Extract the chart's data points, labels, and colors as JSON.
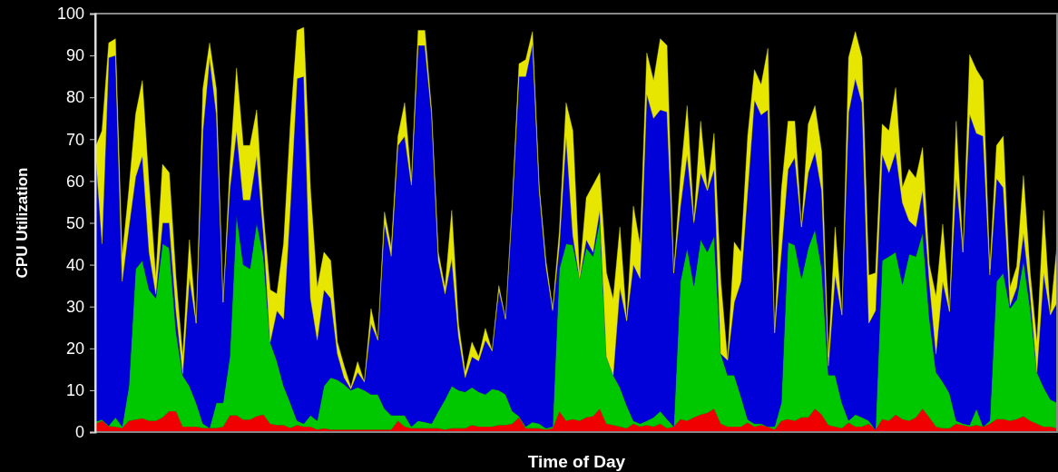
{
  "chart_data": {
    "type": "area",
    "stacked": true,
    "xlabel": "Time of Day",
    "ylabel": "CPU Utilization",
    "ylim": [
      0,
      100
    ],
    "yticks": [
      0,
      10,
      20,
      30,
      40,
      50,
      60,
      70,
      80,
      90,
      100
    ],
    "grid": false,
    "categories": [
      null,
      null,
      null,
      null,
      null,
      null,
      null,
      null,
      null,
      null,
      null,
      null,
      null,
      null,
      null,
      null,
      null,
      null,
      null,
      null,
      null,
      null,
      null,
      null,
      null,
      null,
      null,
      null,
      null,
      null,
      null,
      null,
      null,
      null,
      null,
      null,
      null,
      null,
      null,
      null,
      null,
      null,
      null,
      null,
      null,
      null,
      null,
      null,
      null,
      null,
      null,
      null,
      null,
      null,
      null,
      null,
      null,
      null,
      null,
      null,
      null,
      null,
      null,
      null,
      null,
      null,
      null,
      null,
      null,
      null,
      null,
      null,
      null,
      null,
      null,
      null,
      null,
      null,
      null,
      null,
      null,
      null,
      null,
      null,
      null,
      null,
      null,
      null,
      null,
      null,
      null,
      null,
      null,
      null,
      null,
      null,
      null,
      null,
      null,
      null,
      null,
      null,
      null,
      null,
      null,
      null,
      null,
      null,
      null,
      null,
      null,
      null,
      null,
      null,
      null,
      null,
      null,
      null,
      null,
      null,
      null,
      null,
      null,
      null,
      null,
      null,
      null,
      null,
      null,
      null,
      null,
      null,
      null,
      null,
      null,
      null,
      null,
      null,
      null,
      null,
      null,
      null,
      null,
      null
    ],
    "series": [
      {
        "color": "#f00000",
        "values": [
          2,
          2.7,
          1.4,
          1.3,
          1,
          2.7,
          3,
          3.3,
          2.7,
          2.7,
          3.5,
          5,
          5,
          1.3,
          1.3,
          1.3,
          1,
          1,
          1,
          1.3,
          4,
          4,
          3,
          3,
          3.8,
          4.2,
          2,
          1.7,
          1.7,
          1,
          1.7,
          1.3,
          1.3,
          0.6,
          0.9,
          0.6,
          0.6,
          0.6,
          0.6,
          0.6,
          0.6,
          0.6,
          0.6,
          0.6,
          0.6,
          2.7,
          1.3,
          0.9,
          0.9,
          0.9,
          0.9,
          0.9,
          0.6,
          0.9,
          0.9,
          0.9,
          1.7,
          1.3,
          1.3,
          1.3,
          1.7,
          1.7,
          2,
          3.5,
          0.9,
          0.9,
          0.9,
          0.6,
          0.9,
          5,
          2.7,
          3.1,
          2.7,
          3.5,
          3.8,
          5.6,
          2,
          1.7,
          1.3,
          0.9,
          2,
          1.3,
          1.7,
          1.3,
          2,
          0.9,
          1.3,
          3.1,
          2.7,
          3.5,
          4.2,
          4.6,
          5.6,
          2,
          1.3,
          1.3,
          1.3,
          2.3,
          1.3,
          1.7,
          1.3,
          0.6,
          2.7,
          3.1,
          2.7,
          3.5,
          3.5,
          5.6,
          4.2,
          1.7,
          1.3,
          0.9,
          2.3,
          1.3,
          1.3,
          2,
          0.6,
          3.1,
          2.7,
          4.2,
          3.1,
          2.7,
          3.5,
          5.6,
          3.5,
          1.3,
          0.9,
          0.9,
          2,
          1.7,
          1.3,
          1.7,
          1.3,
          2,
          3.1,
          3.1,
          2.7,
          3.1,
          3.8,
          2.7,
          2,
          1.3,
          1.3,
          0.9
        ]
      },
      {
        "color": "#00c800",
        "values": [
          0.5,
          0.3,
          0.1,
          2.2,
          0.3,
          8.3,
          36,
          37.7,
          31.3,
          29.3,
          41.5,
          39,
          19,
          12.2,
          9.7,
          5.7,
          1,
          0,
          6,
          5.7,
          14,
          48,
          37,
          36,
          46.2,
          37.8,
          19.5,
          15.3,
          9.3,
          6,
          1,
          0.7,
          2.7,
          2.1,
          10.1,
          12.4,
          11.9,
          10.8,
          9.4,
          10.1,
          9.4,
          8.4,
          8.4,
          5,
          3.4,
          1.3,
          2.7,
          0.4,
          1.8,
          1.5,
          1.1,
          4.1,
          7.2,
          10.1,
          9.1,
          8.7,
          9,
          8.3,
          7.7,
          9,
          8.3,
          7.3,
          3,
          0.3,
          0.4,
          1.5,
          1.1,
          0.3,
          0.4,
          34,
          42.3,
          41.6,
          34,
          40.5,
          38.2,
          44.9,
          16,
          11.9,
          9.4,
          5.5,
          0.7,
          0.7,
          1,
          2.2,
          3,
          2.2,
          0,
          32.9,
          41.3,
          31.5,
          41.8,
          38.4,
          41.2,
          16.7,
          12.3,
          12.3,
          7.2,
          0.7,
          0.7,
          0.3,
          0,
          0.7,
          4.3,
          42.3,
          42,
          33.2,
          40.5,
          42.8,
          34.8,
          11.9,
          12.3,
          6.1,
          0.4,
          2.9,
          2.2,
          0.7,
          0,
          37.9,
          39.3,
          38.8,
          32.2,
          39.8,
          38.5,
          42,
          23.8,
          13,
          11.1,
          8.4,
          0.7,
          0.3,
          0.4,
          3.9,
          0,
          0.7,
          32.9,
          34.9,
          26.8,
          28.6,
          37.2,
          26.8,
          12.3,
          9.4,
          6.5,
          6.1
        ]
      },
      {
        "color": "#0000d8",
        "values": [
          65.5,
          42,
          88,
          86.5,
          34.7,
          38,
          22,
          25,
          9,
          1,
          5,
          6,
          5,
          0.5,
          26,
          19,
          70,
          88.5,
          69,
          24,
          40,
          20,
          15.5,
          16.5,
          16,
          5.5,
          0,
          12,
          16,
          47,
          81.8,
          83,
          28,
          19.3,
          23,
          19,
          6.2,
          1.6,
          0.3,
          3.6,
          2,
          17,
          13,
          44.4,
          38,
          64.5,
          66.7,
          57.7,
          89.7,
          90,
          73.8,
          36,
          25.2,
          30.5,
          13,
          3.4,
          7.3,
          7.4,
          13,
          9.1,
          24,
          18,
          49,
          81.2,
          83.7,
          90.4,
          55.7,
          38.7,
          27.7,
          5.7,
          25.7,
          2.3,
          0,
          2,
          1,
          2.5,
          0,
          0,
          23.9,
          20.2,
          37.3,
          34.7,
          78.1,
          71.5,
          72,
          73.4,
          36.7,
          18,
          22.4,
          15,
          16,
          14.7,
          16,
          0,
          3.6,
          17.4,
          27.5,
          54.7,
          77.4,
          73.8,
          75.7,
          22.4,
          36,
          17.4,
          20.9,
          12.3,
          18,
          18.6,
          18.7,
          2.2,
          23.9,
          21,
          73.7,
          80.3,
          75.2,
          23.3,
          28.4,
          25.4,
          20,
          24,
          19.5,
          8,
          7,
          10.1,
          8.7,
          4.4,
          24,
          19.5,
          57.9,
          41,
          74.3,
          65.8,
          69.4,
          34.8,
          24.6,
          20.4,
          0.7,
          2.9,
          6.6,
          3.5,
          0,
          27.3,
          20.2,
          24
        ]
      },
      {
        "color": "#e6e600",
        "values": [
          0,
          27,
          3.5,
          4,
          6,
          9,
          15,
          18,
          16,
          4,
          14,
          12,
          8,
          4,
          9,
          0,
          10,
          3.5,
          6,
          0,
          5,
          15,
          13,
          13,
          11,
          4.5,
          12.5,
          4,
          18,
          19.6,
          11.5,
          11.7,
          26,
          12.5,
          9,
          9,
          2.8,
          2.8,
          0.4,
          2.5,
          0,
          3.5,
          0,
          2.6,
          2,
          2.2,
          8,
          1,
          3.6,
          3.6,
          1.2,
          2,
          1.5,
          11.5,
          3,
          1.3,
          3.5,
          1,
          2.8,
          0,
          1,
          0,
          1,
          3,
          4,
          2.9,
          1.3,
          1.4,
          0.5,
          3.3,
          8,
          25,
          0.8,
          10,
          16,
          9,
          20,
          18.1,
          14.4,
          0,
          14,
          8,
          9.8,
          9,
          17,
          15.9,
          0,
          7,
          11.6,
          0.5,
          12.3,
          0,
          8.6,
          17.3,
          0,
          14.4,
          7,
          13,
          7.2,
          7.2,
          14.7,
          0,
          14.7,
          11.5,
          8.7,
          0,
          11.6,
          11,
          9.3,
          2.2,
          11.5,
          0,
          13.1,
          11.2,
          10.8,
          11.5,
          9,
          7.2,
          10,
          15.3,
          3.6,
          12.3,
          11.7,
          10.3,
          4,
          13.7,
          13.7,
          0,
          13.7,
          0,
          14.2,
          15.2,
          13.3,
          1.5,
          7.9,
          12.3,
          4.3,
          5,
          13.7,
          5,
          7.2,
          15,
          0,
          14
        ]
      }
    ]
  }
}
